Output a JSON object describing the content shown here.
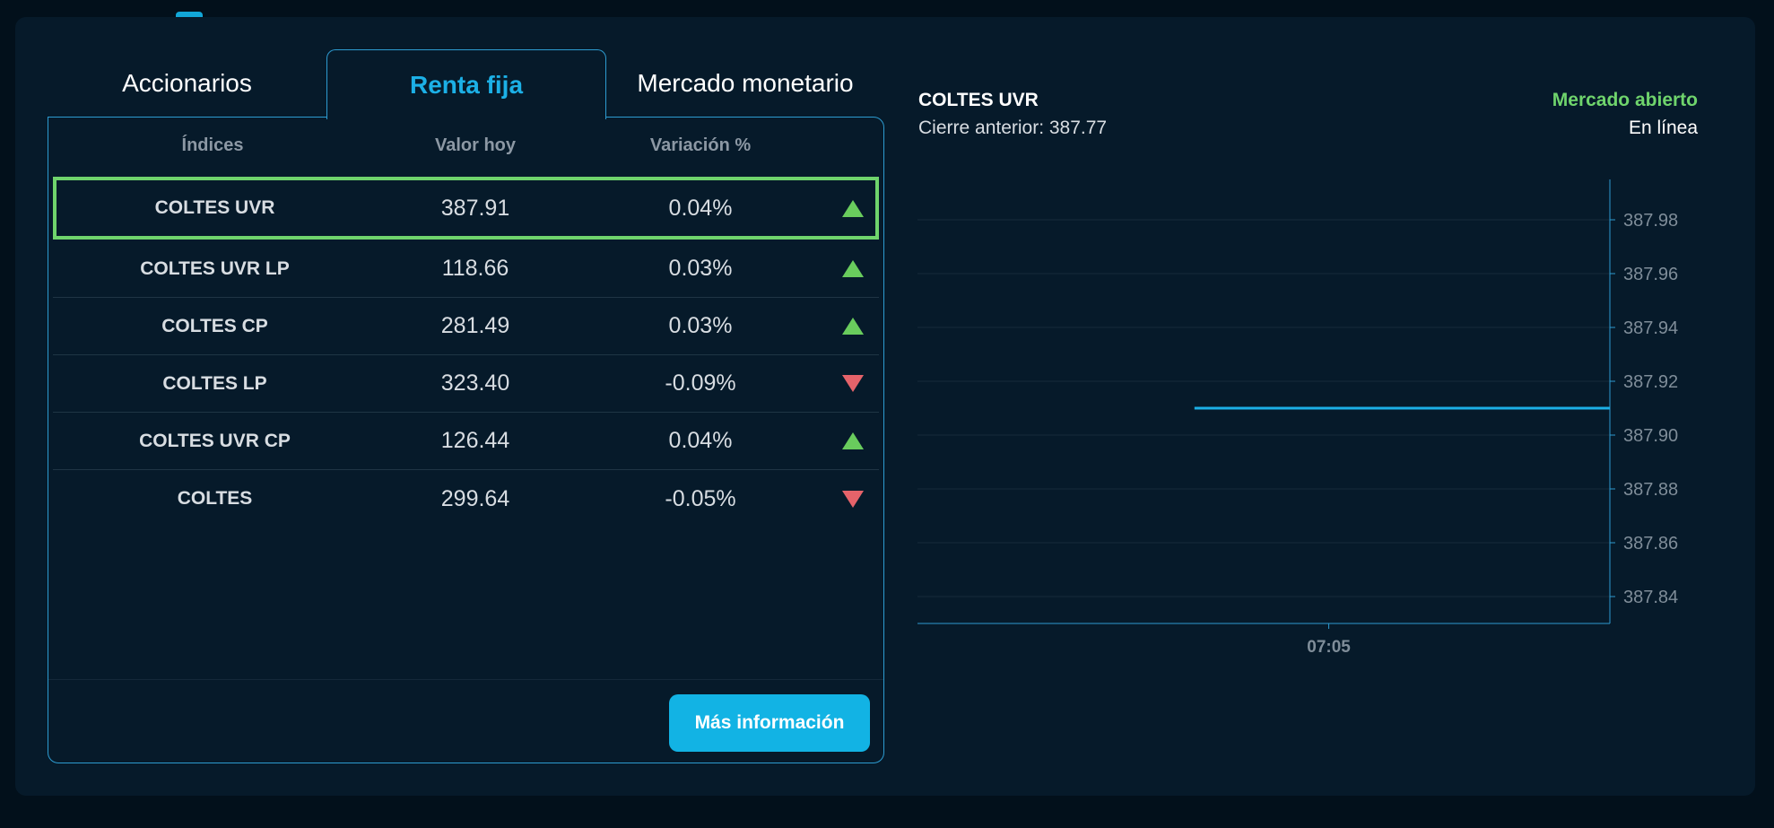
{
  "tabs": [
    {
      "label": "Accionarios",
      "active": false
    },
    {
      "label": "Renta fija",
      "active": true
    },
    {
      "label": "Mercado monetario",
      "active": false
    }
  ],
  "table": {
    "headers": [
      "Índices",
      "Valor hoy",
      "Variación %"
    ],
    "rows": [
      {
        "name": "COLTES UVR",
        "value": "387.91",
        "variation": "0.04%",
        "direction": "up",
        "selected": true
      },
      {
        "name": "COLTES UVR LP",
        "value": "118.66",
        "variation": "0.03%",
        "direction": "up",
        "selected": false
      },
      {
        "name": "COLTES CP",
        "value": "281.49",
        "variation": "0.03%",
        "direction": "up",
        "selected": false
      },
      {
        "name": "COLTES LP",
        "value": "323.40",
        "variation": "-0.09%",
        "direction": "down",
        "selected": false
      },
      {
        "name": "COLTES UVR CP",
        "value": "126.44",
        "variation": "0.04%",
        "direction": "up",
        "selected": false
      },
      {
        "name": "COLTES",
        "value": "299.64",
        "variation": "-0.05%",
        "direction": "down",
        "selected": false
      }
    ],
    "more_button": "Más información"
  },
  "chart_panel": {
    "title": "COLTES UVR",
    "previous_close": "Cierre anterior: 387.77",
    "market_status": "Mercado abierto",
    "market_mode": "En línea"
  },
  "colors": {
    "accent": "#12b3e4",
    "up": "#69cc5d",
    "down": "#e5636a",
    "status_open": "#6fd46c",
    "line": "#1cb0e6"
  },
  "chart_data": {
    "type": "line",
    "title": "COLTES UVR",
    "xlabel": "",
    "ylabel": "",
    "x_ticks": [
      "07:05"
    ],
    "y_ticks": [
      387.84,
      387.86,
      387.88,
      387.9,
      387.92,
      387.94,
      387.96,
      387.98
    ],
    "ylim": [
      387.83,
      387.995
    ],
    "grid": true,
    "y_axis_position": "right",
    "series": [
      {
        "x": [
          "",
          "",
          "07:05",
          ""
        ],
        "values": [
          387.91,
          387.91,
          387.91,
          387.91
        ]
      }
    ]
  }
}
